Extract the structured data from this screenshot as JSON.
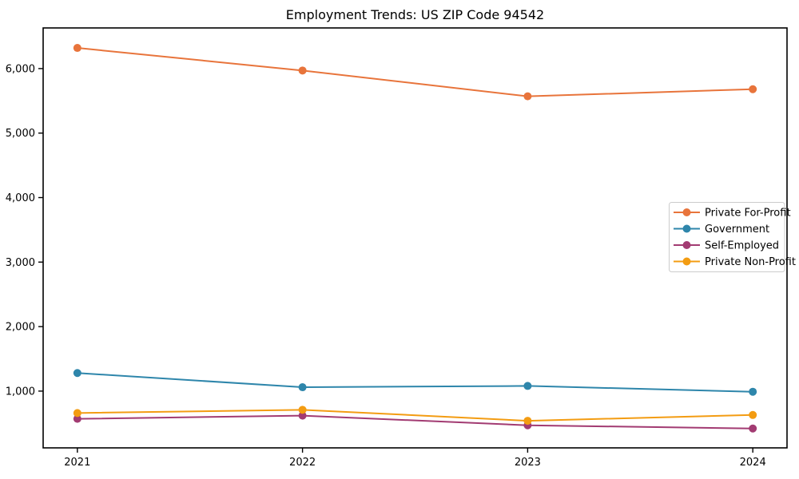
{
  "chart_data": {
    "type": "line",
    "title": "Employment Trends: US ZIP Code 94542",
    "xlabel": "",
    "ylabel": "",
    "categories": [
      "2021",
      "2022",
      "2023",
      "2024"
    ],
    "series": [
      {
        "name": "Private For-Profit",
        "color": "#e8743b",
        "values": [
          6320,
          5970,
          5570,
          5680
        ]
      },
      {
        "name": "Government",
        "color": "#2e86ab",
        "values": [
          1280,
          1060,
          1080,
          990
        ]
      },
      {
        "name": "Self-Employed",
        "color": "#a23b72",
        "values": [
          570,
          620,
          470,
          420
        ]
      },
      {
        "name": "Private Non-Profit",
        "color": "#f39c12",
        "values": [
          660,
          710,
          540,
          630
        ]
      }
    ],
    "yticks": [
      {
        "value": 1000,
        "label": "1,000"
      },
      {
        "value": 2000,
        "label": "2,000"
      },
      {
        "value": 3000,
        "label": "3,000"
      },
      {
        "value": 4000,
        "label": "4,000"
      },
      {
        "value": 5000,
        "label": "5,000"
      },
      {
        "value": 6000,
        "label": "6,000"
      }
    ],
    "ylim": [
      120,
      6630
    ],
    "grid": false,
    "legend_position": "center-right",
    "axis_color": "#000000",
    "legend_border_color": "#cccccc",
    "marker": "circle",
    "line_width": 2
  }
}
